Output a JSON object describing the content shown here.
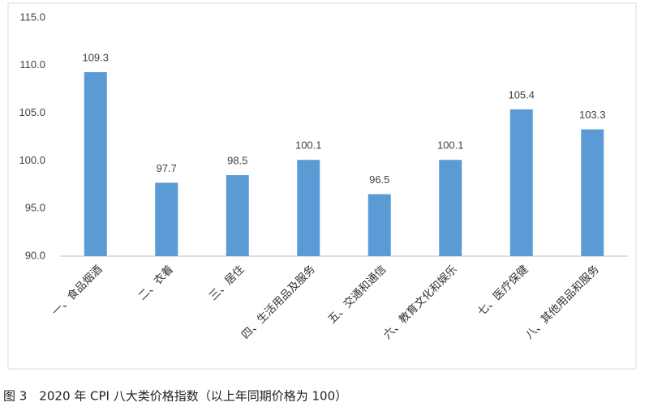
{
  "chart_data": {
    "type": "bar",
    "categories": [
      "一、食品烟酒",
      "二、衣着",
      "三、居住",
      "四、生活用品及服务",
      "五、交通和通信",
      "六、教育文化和娱乐",
      "七、医疗保健",
      "八、其他用品和服务"
    ],
    "values": [
      109.3,
      97.7,
      98.5,
      100.1,
      96.5,
      100.1,
      105.4,
      103.3
    ],
    "color": "#5b9bd5",
    "ylim": [
      90,
      115
    ],
    "yticks": [
      {
        "value": 90,
        "label": "90.0"
      },
      {
        "value": 95,
        "label": "95.0"
      },
      {
        "value": 100,
        "label": "100.0"
      },
      {
        "value": 105,
        "label": "105.0"
      },
      {
        "value": 110,
        "label": "110.0"
      },
      {
        "value": 115,
        "label": "115.0"
      }
    ],
    "grid": false,
    "caption": "图 3　2020 年 CPI 八大类价格指数（以上年同期价格为 100）"
  }
}
